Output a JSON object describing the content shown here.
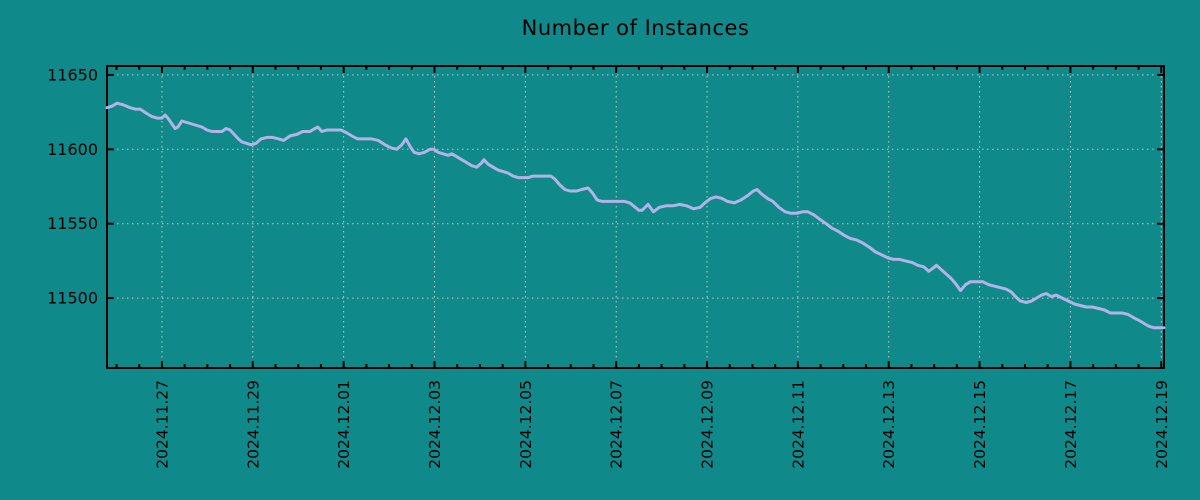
{
  "title": "Number of Instances",
  "colors": {
    "background": "#0f8989",
    "line": "#b3b3e8",
    "grid": "#c8c8c8",
    "axis": "#000000",
    "text": "#000000"
  },
  "chart_data": {
    "type": "line",
    "title": "Number of Instances",
    "xlabel": "",
    "ylabel": "",
    "legend": "none",
    "grid": "dotted",
    "xlim": [
      -1.21,
      22.06
    ],
    "ylim": [
      11453,
      11656
    ],
    "x_tick_positions": [
      0,
      2,
      4,
      6,
      8,
      10,
      12,
      14,
      16,
      18,
      20,
      22
    ],
    "x_tick_labels": [
      "2024.11.27",
      "2024.11.29",
      "2024.12.01",
      "2024.12.03",
      "2024.12.05",
      "2024.12.07",
      "2024.12.09",
      "2024.12.11",
      "2024.12.13",
      "2024.12.15",
      "2024.12.17",
      "2024.12.19"
    ],
    "x_minor_step": 0.5,
    "y_ticks": [
      11500,
      11550,
      11600,
      11650
    ],
    "series": [
      {
        "name": "instances",
        "points": [
          [
            -1.21,
            11628
          ],
          [
            -1.1,
            11629
          ],
          [
            -0.99,
            11631
          ],
          [
            -0.86,
            11630
          ],
          [
            -0.7,
            11628
          ],
          [
            -0.59,
            11627
          ],
          [
            -0.48,
            11627
          ],
          [
            -0.33,
            11624
          ],
          [
            -0.22,
            11622
          ],
          [
            -0.11,
            11621
          ],
          [
            0.0,
            11621
          ],
          [
            0.07,
            11623
          ],
          [
            0.13,
            11621
          ],
          [
            0.22,
            11617
          ],
          [
            0.29,
            11614
          ],
          [
            0.35,
            11615
          ],
          [
            0.44,
            11619
          ],
          [
            0.55,
            11618
          ],
          [
            0.66,
            11617
          ],
          [
            0.77,
            11616
          ],
          [
            0.88,
            11615
          ],
          [
            0.99,
            11613
          ],
          [
            1.1,
            11612
          ],
          [
            1.21,
            11612
          ],
          [
            1.32,
            11612
          ],
          [
            1.41,
            11614
          ],
          [
            1.5,
            11613
          ],
          [
            1.59,
            11610
          ],
          [
            1.68,
            11607
          ],
          [
            1.76,
            11605
          ],
          [
            1.87,
            11604
          ],
          [
            1.96,
            11603
          ],
          [
            2.07,
            11604
          ],
          [
            2.18,
            11607
          ],
          [
            2.31,
            11608
          ],
          [
            2.44,
            11608
          ],
          [
            2.57,
            11607
          ],
          [
            2.68,
            11606
          ],
          [
            2.82,
            11609
          ],
          [
            2.97,
            11610
          ],
          [
            3.1,
            11612
          ],
          [
            3.26,
            11612
          ],
          [
            3.37,
            11614
          ],
          [
            3.43,
            11615
          ],
          [
            3.52,
            11612
          ],
          [
            3.63,
            11613
          ],
          [
            3.79,
            11613
          ],
          [
            3.94,
            11613
          ],
          [
            4.07,
            11611
          ],
          [
            4.18,
            11609
          ],
          [
            4.31,
            11607
          ],
          [
            4.47,
            11607
          ],
          [
            4.62,
            11607
          ],
          [
            4.76,
            11606
          ],
          [
            4.91,
            11603
          ],
          [
            5.04,
            11601
          ],
          [
            5.17,
            11600
          ],
          [
            5.28,
            11603
          ],
          [
            5.37,
            11607
          ],
          [
            5.46,
            11602
          ],
          [
            5.55,
            11598
          ],
          [
            5.66,
            11597
          ],
          [
            5.78,
            11598
          ],
          [
            5.9,
            11600
          ],
          [
            5.99,
            11600
          ],
          [
            6.08,
            11598
          ],
          [
            6.19,
            11597
          ],
          [
            6.3,
            11596
          ],
          [
            6.38,
            11597
          ],
          [
            6.49,
            11595
          ],
          [
            6.6,
            11593
          ],
          [
            6.71,
            11591
          ],
          [
            6.82,
            11589
          ],
          [
            6.93,
            11588
          ],
          [
            7.04,
            11591
          ],
          [
            7.09,
            11593
          ],
          [
            7.18,
            11590
          ],
          [
            7.29,
            11588
          ],
          [
            7.4,
            11586
          ],
          [
            7.51,
            11585
          ],
          [
            7.62,
            11584
          ],
          [
            7.73,
            11582
          ],
          [
            7.84,
            11581
          ],
          [
            7.95,
            11581
          ],
          [
            8.06,
            11581
          ],
          [
            8.17,
            11582
          ],
          [
            8.32,
            11582
          ],
          [
            8.45,
            11582
          ],
          [
            8.56,
            11582
          ],
          [
            8.65,
            11580
          ],
          [
            8.76,
            11576
          ],
          [
            8.87,
            11573
          ],
          [
            8.98,
            11572
          ],
          [
            9.13,
            11572
          ],
          [
            9.24,
            11573
          ],
          [
            9.38,
            11574
          ],
          [
            9.47,
            11571
          ],
          [
            9.58,
            11566
          ],
          [
            9.69,
            11565
          ],
          [
            9.86,
            11565
          ],
          [
            10.02,
            11565
          ],
          [
            10.19,
            11565
          ],
          [
            10.3,
            11564
          ],
          [
            10.42,
            11561
          ],
          [
            10.5,
            11559
          ],
          [
            10.57,
            11559
          ],
          [
            10.7,
            11563
          ],
          [
            10.82,
            11558
          ],
          [
            10.95,
            11561
          ],
          [
            11.1,
            11562
          ],
          [
            11.25,
            11562
          ],
          [
            11.4,
            11563
          ],
          [
            11.55,
            11562
          ],
          [
            11.7,
            11560
          ],
          [
            11.85,
            11561
          ],
          [
            11.95,
            11564
          ],
          [
            12.08,
            11567
          ],
          [
            12.2,
            11568
          ],
          [
            12.33,
            11567
          ],
          [
            12.45,
            11565
          ],
          [
            12.6,
            11564
          ],
          [
            12.75,
            11566
          ],
          [
            12.9,
            11569
          ],
          [
            13.02,
            11572
          ],
          [
            13.1,
            11573
          ],
          [
            13.2,
            11570
          ],
          [
            13.33,
            11567
          ],
          [
            13.45,
            11565
          ],
          [
            13.58,
            11561
          ],
          [
            13.72,
            11558
          ],
          [
            13.85,
            11557
          ],
          [
            13.98,
            11557
          ],
          [
            14.1,
            11558
          ],
          [
            14.22,
            11558
          ],
          [
            14.35,
            11556
          ],
          [
            14.48,
            11553
          ],
          [
            14.62,
            11550
          ],
          [
            14.75,
            11547
          ],
          [
            14.88,
            11545
          ],
          [
            15.03,
            11542
          ],
          [
            15.16,
            11540
          ],
          [
            15.3,
            11539
          ],
          [
            15.43,
            11537
          ],
          [
            15.58,
            11534
          ],
          [
            15.71,
            11531
          ],
          [
            15.85,
            11529
          ],
          [
            15.98,
            11527
          ],
          [
            16.11,
            11526
          ],
          [
            16.24,
            11526
          ],
          [
            16.37,
            11525
          ],
          [
            16.51,
            11524
          ],
          [
            16.64,
            11522
          ],
          [
            16.77,
            11521
          ],
          [
            16.88,
            11518
          ],
          [
            16.97,
            11520
          ],
          [
            17.05,
            11522
          ],
          [
            17.16,
            11519
          ],
          [
            17.27,
            11516
          ],
          [
            17.38,
            11513
          ],
          [
            17.49,
            11509
          ],
          [
            17.58,
            11505
          ],
          [
            17.69,
            11509
          ],
          [
            17.8,
            11511
          ],
          [
            17.93,
            11511
          ],
          [
            18.07,
            11511
          ],
          [
            18.2,
            11509
          ],
          [
            18.33,
            11508
          ],
          [
            18.46,
            11507
          ],
          [
            18.59,
            11506
          ],
          [
            18.7,
            11504
          ],
          [
            18.79,
            11501
          ],
          [
            18.9,
            11498
          ],
          [
            19.03,
            11497
          ],
          [
            19.14,
            11498
          ],
          [
            19.25,
            11500
          ],
          [
            19.36,
            11502
          ],
          [
            19.47,
            11503
          ],
          [
            19.58,
            11501
          ],
          [
            19.69,
            11502
          ],
          [
            19.82,
            11500
          ],
          [
            19.96,
            11498
          ],
          [
            20.09,
            11496
          ],
          [
            20.22,
            11495
          ],
          [
            20.35,
            11494
          ],
          [
            20.48,
            11494
          ],
          [
            20.62,
            11493
          ],
          [
            20.75,
            11492
          ],
          [
            20.88,
            11490
          ],
          [
            21.01,
            11490
          ],
          [
            21.14,
            11490
          ],
          [
            21.27,
            11489
          ],
          [
            21.38,
            11487
          ],
          [
            21.51,
            11485
          ],
          [
            21.62,
            11483
          ],
          [
            21.73,
            11481
          ],
          [
            21.84,
            11480
          ],
          [
            21.98,
            11480
          ],
          [
            22.06,
            11480
          ]
        ]
      }
    ]
  }
}
